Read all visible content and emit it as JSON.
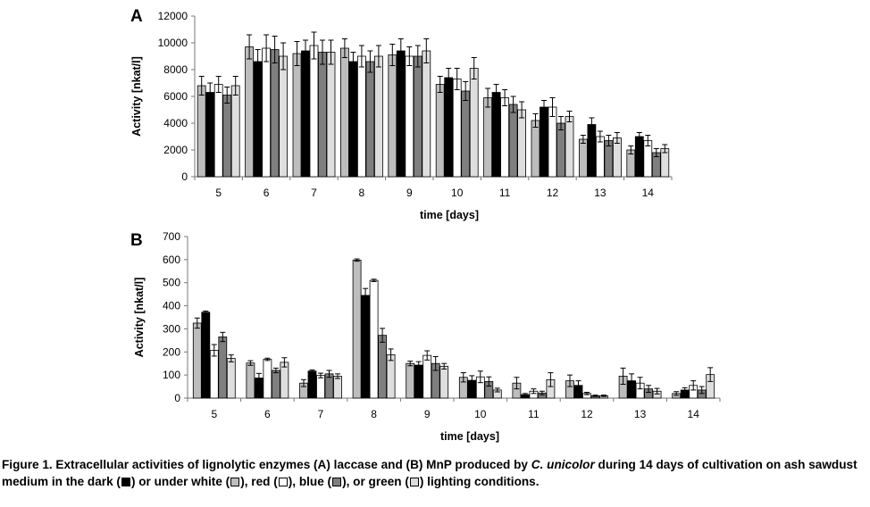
{
  "colors": {
    "dark": "#000000",
    "white": "#bdbdbd",
    "red": "#ffffff",
    "blue": "#7f7f7f",
    "green": "#dedede"
  },
  "chart_data": [
    {
      "type": "bar",
      "panel_label": "A",
      "ylabel": "Activity [nkat/l]",
      "xlabel": "time [days]",
      "ylim": [
        0,
        12000
      ],
      "yticks": [
        0,
        2000,
        4000,
        6000,
        8000,
        10000,
        12000
      ],
      "ytick_labels": [
        "0",
        "2000",
        "4000",
        "6000",
        "8000",
        "10000",
        "12000"
      ],
      "categories": [
        "5",
        "6",
        "7",
        "8",
        "9",
        "10",
        "11",
        "12",
        "13",
        "14"
      ],
      "series": [
        {
          "color_key": "white",
          "values": [
            6800,
            9700,
            9200,
            9600,
            9100,
            6900,
            5900,
            4200,
            2800,
            2000
          ],
          "errors": [
            700,
            900,
            900,
            700,
            800,
            600,
            700,
            500,
            300,
            300
          ]
        },
        {
          "color_key": "dark",
          "values": [
            6300,
            8600,
            9400,
            8600,
            9400,
            7400,
            6300,
            5200,
            3900,
            3000
          ],
          "errors": [
            700,
            900,
            800,
            700,
            900,
            700,
            600,
            500,
            500,
            300
          ]
        },
        {
          "color_key": "red",
          "values": [
            6900,
            9600,
            9800,
            9000,
            9000,
            7300,
            5900,
            5200,
            3000,
            2700
          ],
          "errors": [
            600,
            1000,
            1000,
            800,
            700,
            800,
            600,
            700,
            400,
            400
          ]
        },
        {
          "color_key": "blue",
          "values": [
            6100,
            9500,
            9300,
            8600,
            9000,
            6400,
            5400,
            4000,
            2700,
            1800
          ],
          "errors": [
            600,
            1000,
            900,
            800,
            800,
            700,
            600,
            500,
            400,
            300
          ]
        },
        {
          "color_key": "green",
          "values": [
            6800,
            9000,
            9300,
            9000,
            9400,
            8100,
            5000,
            4500,
            2900,
            2100
          ],
          "errors": [
            700,
            1000,
            900,
            800,
            900,
            800,
            600,
            400,
            400,
            300
          ]
        }
      ]
    },
    {
      "type": "bar",
      "panel_label": "B",
      "ylabel": "Activity [nkat/l]",
      "xlabel": "time [days]",
      "ylim": [
        0,
        700
      ],
      "yticks": [
        0,
        100,
        200,
        300,
        400,
        500,
        600,
        700
      ],
      "ytick_labels": [
        "0",
        "100",
        "200",
        "300",
        "400",
        "500",
        "600",
        "700"
      ],
      "categories": [
        "5",
        "6",
        "7",
        "8",
        "9",
        "10",
        "11",
        "12",
        "13",
        "14"
      ],
      "series": [
        {
          "color_key": "white",
          "values": [
            325,
            152,
            65,
            598,
            150,
            90,
            65,
            75,
            95,
            20
          ],
          "errors": [
            22,
            10,
            15,
            5,
            10,
            20,
            25,
            25,
            35,
            8
          ]
        },
        {
          "color_key": "dark",
          "values": [
            372,
            87,
            117,
            445,
            143,
            77,
            15,
            55,
            75,
            35
          ],
          "errors": [
            5,
            20,
            5,
            30,
            15,
            20,
            5,
            20,
            30,
            10
          ]
        },
        {
          "color_key": "red",
          "values": [
            207,
            168,
            98,
            510,
            185,
            92,
            30,
            20,
            65,
            55
          ],
          "errors": [
            25,
            5,
            10,
            5,
            20,
            25,
            10,
            5,
            25,
            20
          ]
        },
        {
          "color_key": "blue",
          "values": [
            265,
            120,
            105,
            272,
            150,
            72,
            22,
            10,
            40,
            35
          ],
          "errors": [
            20,
            10,
            15,
            30,
            30,
            20,
            8,
            3,
            15,
            15
          ]
        },
        {
          "color_key": "green",
          "values": [
            172,
            155,
            95,
            188,
            138,
            35,
            80,
            10,
            30,
            102
          ],
          "errors": [
            15,
            20,
            10,
            25,
            12,
            8,
            30,
            3,
            12,
            30
          ]
        }
      ]
    }
  ],
  "caption": {
    "p1": "Figure 1. Extracellular activities of lignolytic enzymes (A) laccase and (B) MnP produced by ",
    "species": "C. unicolor",
    "p2": " during 14 days of cultivation on ash sawdust medium in the dark (",
    "p3": ") or under white (",
    "p4": "), red (",
    "p5": "), blue (",
    "p6": "), or green (",
    "p7": ") lighting conditions."
  }
}
